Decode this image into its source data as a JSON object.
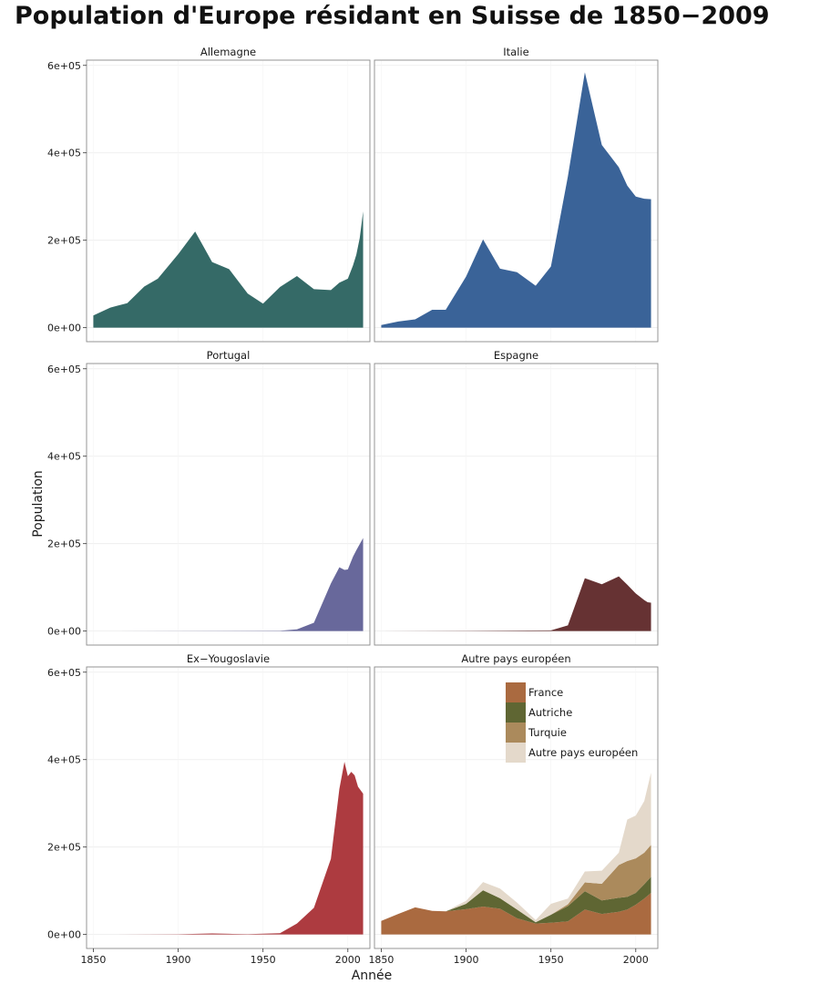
{
  "chart_data": {
    "type": "area",
    "title": "Population d'Europe résidant en Suisse de 1850−2009",
    "xlabel": "Année",
    "ylabel": "Population",
    "xlim": [
      1846,
      2013
    ],
    "ylim": [
      -32000,
      612000
    ],
    "x_ticks": [
      1850,
      1900,
      1950,
      2000
    ],
    "x_tick_labels": [
      "1850",
      "1900",
      "1950",
      "2000"
    ],
    "y_ticks": [
      0,
      200000,
      400000,
      600000
    ],
    "y_tick_labels": [
      "0e+00",
      "2e+05",
      "4e+05",
      "6e+05"
    ],
    "grid": true,
    "legend_position": "top-right of last panel",
    "panels": [
      {
        "name": "Allemagne",
        "color": "#356a67",
        "stacked": false,
        "series": [
          {
            "name": "Allemagne",
            "color": "#356a67",
            "points": [
              [
                1850,
                28000
              ],
              [
                1860,
                46000
              ],
              [
                1870,
                56000
              ],
              [
                1880,
                94000
              ],
              [
                1888,
                112000
              ],
              [
                1900,
                168000
              ],
              [
                1910,
                220000
              ],
              [
                1920,
                150000
              ],
              [
                1930,
                134000
              ],
              [
                1941,
                78000
              ],
              [
                1950,
                55000
              ],
              [
                1960,
                93000
              ],
              [
                1970,
                118000
              ],
              [
                1980,
                88000
              ],
              [
                1990,
                86000
              ],
              [
                1995,
                103000
              ],
              [
                2000,
                112000
              ],
              [
                2003,
                142000
              ],
              [
                2005,
                167000
              ],
              [
                2007,
                205000
              ],
              [
                2009,
                266000
              ]
            ]
          }
        ]
      },
      {
        "name": "Italie",
        "color": "#3a6398",
        "stacked": false,
        "series": [
          {
            "name": "Italie",
            "color": "#3a6398",
            "points": [
              [
                1850,
                6000
              ],
              [
                1860,
                14000
              ],
              [
                1870,
                19000
              ],
              [
                1880,
                41000
              ],
              [
                1888,
                41000
              ],
              [
                1900,
                117000
              ],
              [
                1910,
                202000
              ],
              [
                1920,
                135000
              ],
              [
                1930,
                127000
              ],
              [
                1941,
                96000
              ],
              [
                1950,
                140000
              ],
              [
                1960,
                346000
              ],
              [
                1970,
                584000
              ],
              [
                1980,
                418000
              ],
              [
                1990,
                367000
              ],
              [
                1995,
                325000
              ],
              [
                2000,
                300000
              ],
              [
                2005,
                295000
              ],
              [
                2009,
                294000
              ]
            ]
          }
        ]
      },
      {
        "name": "Portugal",
        "color": "#68689b",
        "stacked": false,
        "series": [
          {
            "name": "Portugal",
            "color": "#68689b",
            "points": [
              [
                1850,
                0
              ],
              [
                1960,
                800
              ],
              [
                1970,
                4000
              ],
              [
                1980,
                19000
              ],
              [
                1990,
                109000
              ],
              [
                1995,
                146000
              ],
              [
                1998,
                140000
              ],
              [
                2000,
                141000
              ],
              [
                2003,
                170000
              ],
              [
                2005,
                185000
              ],
              [
                2009,
                213000
              ]
            ]
          }
        ]
      },
      {
        "name": "Espagne",
        "color": "#663233",
        "stacked": false,
        "series": [
          {
            "name": "Espagne",
            "color": "#663233",
            "points": [
              [
                1850,
                0
              ],
              [
                1900,
                500
              ],
              [
                1950,
                1500
              ],
              [
                1960,
                13000
              ],
              [
                1970,
                121000
              ],
              [
                1980,
                107000
              ],
              [
                1990,
                125000
              ],
              [
                1995,
                106000
              ],
              [
                2000,
                86000
              ],
              [
                2005,
                71000
              ],
              [
                2007,
                66000
              ],
              [
                2009,
                65000
              ]
            ]
          }
        ]
      },
      {
        "name": "Ex−Yougoslavie",
        "color": "#ad3b40",
        "stacked": false,
        "series": [
          {
            "name": "Ex−Yougoslavie",
            "color": "#ad3b40",
            "points": [
              [
                1850,
                0
              ],
              [
                1900,
                500
              ],
              [
                1920,
                2500
              ],
              [
                1930,
                1500
              ],
              [
                1941,
                800
              ],
              [
                1960,
                3000
              ],
              [
                1970,
                25000
              ],
              [
                1980,
                61000
              ],
              [
                1990,
                173000
              ],
              [
                1995,
                333000
              ],
              [
                1998,
                395000
              ],
              [
                2000,
                362000
              ],
              [
                2002,
                372000
              ],
              [
                2004,
                364000
              ],
              [
                2006,
                338000
              ],
              [
                2009,
                322000
              ]
            ]
          }
        ]
      },
      {
        "name": "Autre pays européen",
        "color": "#aa6a40",
        "stacked": true,
        "x": [
          1850,
          1860,
          1870,
          1880,
          1888,
          1900,
          1910,
          1920,
          1930,
          1941,
          1950,
          1960,
          1970,
          1980,
          1990,
          1995,
          2000,
          2005,
          2009
        ],
        "series": [
          {
            "name": "France",
            "color": "#aa6a40",
            "values": [
              31000,
              47000,
              62000,
              54000,
              53000,
              58000,
              64000,
              59000,
              37000,
              25000,
              27000,
              30000,
              57000,
              47000,
              52000,
              57000,
              68000,
              82000,
              95000
            ]
          },
          {
            "name": "Autriche",
            "color": "#5f6633",
            "values": [
              0,
              0,
              0,
              0,
              0,
              12000,
              37000,
              24000,
              20000,
              3000,
              18000,
              35000,
              42000,
              31000,
              32000,
              29000,
              27000,
              33000,
              37000
            ]
          },
          {
            "name": "Turquie",
            "color": "#ab8a5c",
            "values": [
              0,
              0,
              0,
              0,
              0,
              0,
              0,
              0,
              0,
              0,
              0,
              4000,
              20000,
              38000,
              75000,
              82000,
              79000,
              72000,
              73000
            ]
          },
          {
            "name": "Autre pays européen",
            "color": "#e4d9cb",
            "values": [
              0,
              0,
              0,
              0,
              0,
              7000,
              19000,
              22000,
              16000,
              5000,
              25000,
              13000,
              25000,
              30000,
              28000,
              95000,
              98000,
              118000,
              165000
            ]
          }
        ]
      }
    ],
    "legend": [
      {
        "label": "France",
        "color": "#aa6a40"
      },
      {
        "label": "Autriche",
        "color": "#5f6633"
      },
      {
        "label": "Turquie",
        "color": "#ab8a5c"
      },
      {
        "label": "Autre pays européen",
        "color": "#e4d9cb"
      }
    ]
  }
}
